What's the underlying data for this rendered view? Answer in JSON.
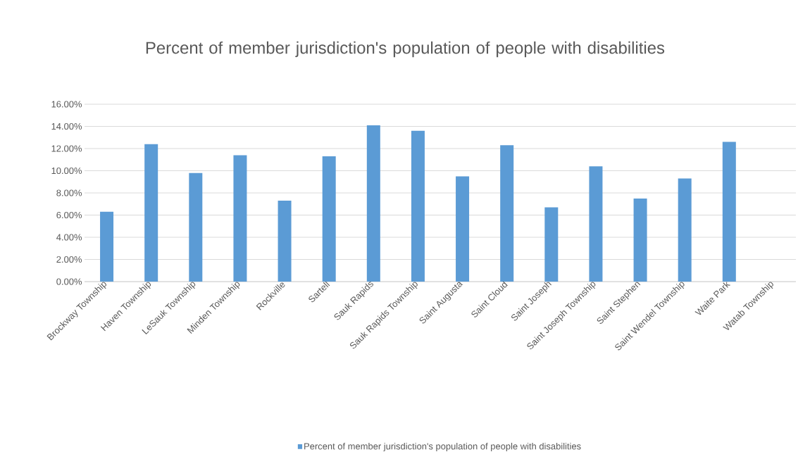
{
  "chart_data": {
    "type": "bar",
    "title": "Percent of member jurisdiction's population of people with disabilities",
    "categories": [
      "Brockway Township",
      "Haven Township",
      "LeSauk Township",
      "Minden Township",
      "Rockville",
      "Sartell",
      "Sauk Rapids",
      "Sauk Rapids Township",
      "Saint Augusta",
      "Saint Cloud",
      "Saint Joseph",
      "Saint Joseph Township",
      "Saint Stephen",
      "Saint Wendel Township",
      "Waite Park",
      "Watab Township"
    ],
    "series": [
      {
        "name": "Percent of member jurisdiction's population of people with disabilities",
        "color": "#5b9bd5",
        "values": [
          6.3,
          12.4,
          9.8,
          11.4,
          7.3,
          11.3,
          14.1,
          13.6,
          9.5,
          12.3,
          6.7,
          10.4,
          7.5,
          9.3,
          12.6,
          null
        ]
      }
    ],
    "ylim": [
      0,
      16
    ],
    "yticks": [
      {
        "value": 0,
        "label": "0.00%"
      },
      {
        "value": 2,
        "label": "2.00%"
      },
      {
        "value": 4,
        "label": "4.00%"
      },
      {
        "value": 6,
        "label": "6.00%"
      },
      {
        "value": 8,
        "label": "8.00%"
      },
      {
        "value": 10,
        "label": "10.00%"
      },
      {
        "value": 12,
        "label": "12.00%"
      },
      {
        "value": 14,
        "label": "14.00%"
      },
      {
        "value": 16,
        "label": "16.00%"
      }
    ],
    "grid": "y",
    "legend": "bottom"
  }
}
